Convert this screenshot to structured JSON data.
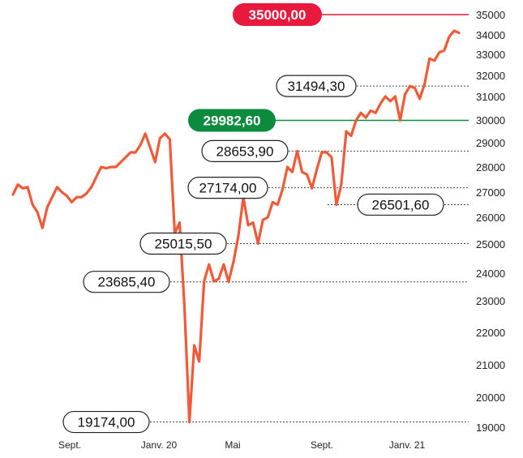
{
  "chart_data": {
    "type": "line",
    "title": "",
    "xlabel": "",
    "ylabel": "",
    "ylim": [
      19000,
      35000
    ],
    "y_ticks": [
      19000,
      20000,
      21000,
      22000,
      23000,
      24000,
      25000,
      26000,
      27000,
      28000,
      29000,
      30000,
      31000,
      32000,
      33000,
      34000,
      35000
    ],
    "y_tick_labels": [
      "19000",
      "20000",
      "21000",
      "22000",
      "23000",
      "24000",
      "25000",
      "26000",
      "27000",
      "28000",
      "29000",
      "30000",
      "31000",
      "32000",
      "33000",
      "34000",
      "35000"
    ],
    "x_ticks": [
      "Sept.",
      "Janv. 20",
      "Mai",
      "Sept.",
      "Janv. 21"
    ],
    "grid": false,
    "series": [
      {
        "name": "",
        "color": "#f05a38",
        "values": [
          26900,
          27300,
          27150,
          27200,
          26500,
          26200,
          25600,
          26400,
          26800,
          27200,
          27000,
          26850,
          26600,
          26800,
          26800,
          26950,
          27200,
          27600,
          28000,
          27950,
          28000,
          28000,
          28200,
          28400,
          28600,
          28600,
          28900,
          29400,
          28800,
          28200,
          29200,
          29400,
          29150,
          25400,
          25800,
          22800,
          19174,
          21600,
          21100,
          23700,
          24300,
          23700,
          23800,
          24300,
          23685,
          24400,
          25300,
          26800,
          25700,
          25800,
          25015,
          25900,
          26000,
          26600,
          26500,
          27100,
          28000,
          27800,
          28653.9,
          27800,
          27700,
          27150,
          27900,
          28600,
          28600,
          28400,
          26501.6,
          27300,
          29500,
          29300,
          29982.6,
          30300,
          30100,
          30400,
          30300,
          30700,
          31000,
          30800,
          31000,
          29982.6,
          31100,
          31494.3,
          31400,
          30900,
          31600,
          32800,
          32700,
          33100,
          33200,
          33900,
          34200,
          34100
        ]
      }
    ],
    "reference_lines": [
      {
        "value": 35000,
        "label": "35000,00",
        "color": "#e8193c"
      },
      {
        "value": 29982.6,
        "label": "29982,60",
        "color": "#0c8a3e"
      }
    ],
    "annotations": [
      {
        "value": 31494.3,
        "label": "31494,30"
      },
      {
        "value": 28653.9,
        "label": "28653,90"
      },
      {
        "value": 27174.0,
        "label": "27174,00"
      },
      {
        "value": 26501.6,
        "label": "26501,60"
      },
      {
        "value": 25015.5,
        "label": "25015,50"
      },
      {
        "value": 23685.4,
        "label": "23685,40"
      },
      {
        "value": 19174.0,
        "label": "19174,00"
      }
    ]
  }
}
